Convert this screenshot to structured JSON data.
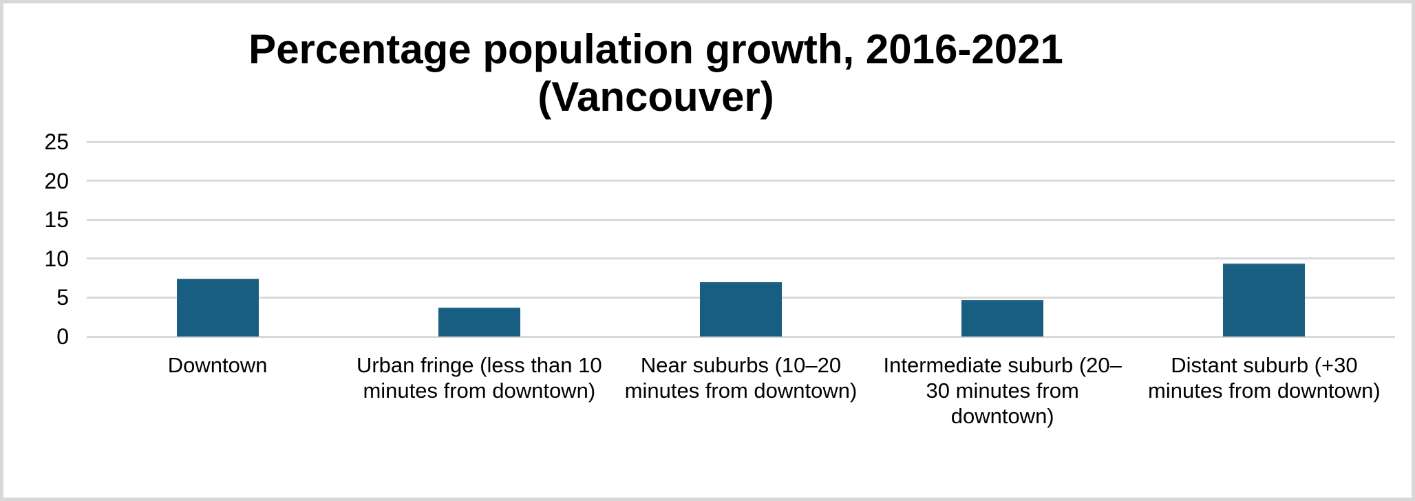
{
  "chart": {
    "title_lines": [
      "Percentage population growth, 2016-2021",
      "(Vancouver)"
    ]
  },
  "chart_data": {
    "type": "bar",
    "title": "Percentage population growth, 2016-2021 (Vancouver)",
    "xlabel": "",
    "ylabel": "",
    "categories": [
      "Downtown",
      "Urban fringe (less than 10 minutes from downtown)",
      "Near suburbs (10–20 minutes from downtown)",
      "Intermediate suburb (20–30 minutes from downtown)",
      "Distant suburb (+30 minutes from downtown)"
    ],
    "category_lines": [
      [
        "Downtown"
      ],
      [
        "Urban fringe (less than 10",
        "minutes from downtown)"
      ],
      [
        "Near suburbs (10–20",
        "minutes from downtown)"
      ],
      [
        "Intermediate suburb (20–",
        "30 minutes from",
        "downtown)"
      ],
      [
        "Distant suburb (+30",
        "minutes from downtown)"
      ]
    ],
    "values": [
      7.4,
      3.7,
      7.0,
      4.7,
      9.4
    ],
    "yticks": [
      25,
      20,
      15,
      10,
      5,
      0
    ],
    "ylim": [
      0,
      25
    ],
    "grid": true,
    "legend": false,
    "bar_color": "#175e81",
    "gridline_color": "#d9d9d9",
    "border_color": "#d9d9d9",
    "background_color": "#ffffff"
  }
}
